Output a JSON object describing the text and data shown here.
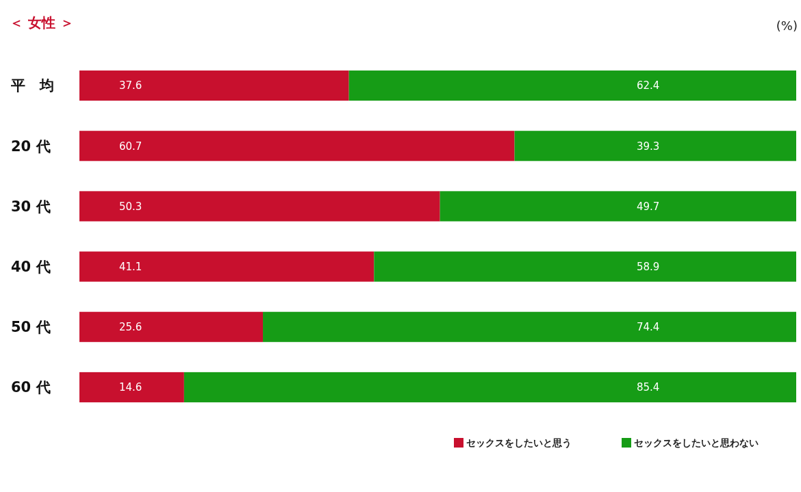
{
  "chart_data": {
    "type": "bar",
    "orientation": "horizontal",
    "stacked": true,
    "title": "＜ 女性 ＞",
    "annotations": [
      "(%)"
    ],
    "categories": [
      "平　均",
      "20 代",
      "30 代",
      "40 代",
      "50 代",
      "60 代"
    ],
    "xlim": [
      0,
      100
    ],
    "tick_labels": "y",
    "data_labels": true,
    "legend": "bottom right",
    "series": [
      {
        "name": "セックスをしたいと思う",
        "color": "#c8102e",
        "values": [
          37.6,
          60.7,
          50.3,
          41.1,
          25.6,
          14.6
        ]
      },
      {
        "name": "セックスをしたいと思わない",
        "color": "#169c16",
        "values": [
          62.4,
          39.3,
          49.7,
          58.9,
          74.4,
          85.4
        ]
      }
    ]
  }
}
